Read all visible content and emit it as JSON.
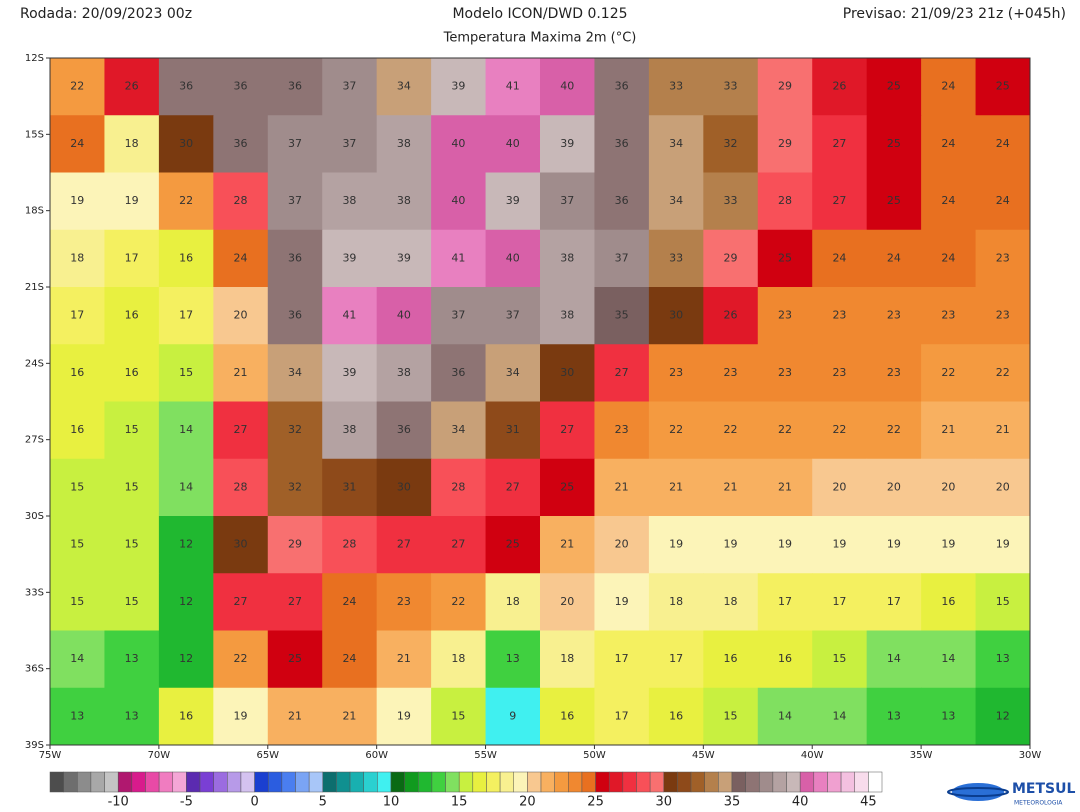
{
  "header": {
    "left": "Rodada: 20/09/2023 00z",
    "center": "Modelo ICON/DWD 0.125",
    "subtitle": "Temperatura Maxima 2m (°C)",
    "right": "Previsao: 21/09/23 21z (+045h)"
  },
  "map": {
    "lat_ticks": [
      {
        "value": -12,
        "label": "12S"
      },
      {
        "value": -15,
        "label": "15S"
      },
      {
        "value": -18,
        "label": "18S"
      },
      {
        "value": -21,
        "label": "21S"
      },
      {
        "value": -24,
        "label": "24S"
      },
      {
        "value": -27,
        "label": "27S"
      },
      {
        "value": -30,
        "label": "30S"
      },
      {
        "value": -33,
        "label": "33S"
      },
      {
        "value": -36,
        "label": "36S"
      },
      {
        "value": -39,
        "label": "39S"
      }
    ],
    "lon_ticks": [
      {
        "value": -75,
        "label": "75W"
      },
      {
        "value": -70,
        "label": "70W"
      },
      {
        "value": -65,
        "label": "65W"
      },
      {
        "value": -60,
        "label": "60W"
      },
      {
        "value": -55,
        "label": "55W"
      },
      {
        "value": -50,
        "label": "50W"
      },
      {
        "value": -45,
        "label": "45W"
      },
      {
        "value": -40,
        "label": "40W"
      },
      {
        "value": -35,
        "label": "35W"
      },
      {
        "value": -30,
        "label": "30W"
      }
    ],
    "values": [
      [
        22,
        26,
        36,
        36,
        36,
        37,
        34,
        39,
        41,
        40,
        36,
        33,
        33,
        29,
        26,
        25,
        24,
        25
      ],
      [
        24,
        18,
        30,
        36,
        37,
        37,
        38,
        40,
        40,
        39,
        36,
        34,
        32,
        29,
        27,
        25,
        24,
        24
      ],
      [
        19,
        19,
        22,
        28,
        37,
        38,
        38,
        40,
        39,
        37,
        36,
        34,
        33,
        28,
        27,
        25,
        24,
        24
      ],
      [
        18,
        17,
        16,
        24,
        36,
        39,
        39,
        41,
        40,
        38,
        37,
        33,
        29,
        25,
        24,
        24,
        24,
        23
      ],
      [
        17,
        16,
        17,
        20,
        36,
        41,
        40,
        37,
        37,
        38,
        35,
        30,
        26,
        23,
        23,
        23,
        23,
        23
      ],
      [
        16,
        16,
        15,
        21,
        34,
        39,
        38,
        36,
        34,
        30,
        27,
        23,
        23,
        23,
        23,
        23,
        22,
        22
      ],
      [
        16,
        15,
        14,
        27,
        32,
        38,
        36,
        34,
        31,
        27,
        23,
        22,
        22,
        22,
        22,
        22,
        21,
        21
      ],
      [
        15,
        15,
        14,
        28,
        32,
        31,
        30,
        28,
        27,
        25,
        21,
        21,
        21,
        21,
        20,
        20,
        20,
        20
      ],
      [
        15,
        15,
        12,
        30,
        29,
        28,
        27,
        27,
        25,
        21,
        20,
        19,
        19,
        19,
        19,
        19,
        19,
        19
      ],
      [
        15,
        15,
        12,
        27,
        27,
        24,
        23,
        22,
        18,
        20,
        19,
        18,
        18,
        17,
        17,
        17,
        16,
        15
      ],
      [
        14,
        13,
        12,
        22,
        25,
        24,
        21,
        18,
        13,
        18,
        17,
        17,
        16,
        16,
        15,
        14,
        14,
        13
      ],
      [
        13,
        13,
        16,
        19,
        21,
        21,
        19,
        15,
        9,
        16,
        17,
        16,
        15,
        14,
        14,
        13,
        13,
        12
      ]
    ],
    "colorbar": {
      "min": -15,
      "colors": [
        "#4d4d4d",
        "#6e6e6e",
        "#8c8c8c",
        "#a8a8a8",
        "#c4c4c4",
        "#b0186f",
        "#d81b8c",
        "#e84aa6",
        "#f07cc0",
        "#f4a6d6",
        "#5b2bb0",
        "#7a3fd4",
        "#9b6ce0",
        "#b79ae8",
        "#d4c2f0",
        "#1a3fd0",
        "#2b5de0",
        "#4a7ef0",
        "#7aa4f4",
        "#a8c6f8",
        "#0d6e6e",
        "#109090",
        "#18b0b0",
        "#2ad0d0",
        "#40f0f0",
        "#0a6a14",
        "#109a1e",
        "#20b830",
        "#40d040",
        "#80e060",
        "#c8f040",
        "#e8f040",
        "#f4f060",
        "#f8f090",
        "#fcf4b8",
        "#f8c890",
        "#f8b060",
        "#f49a40",
        "#f08830",
        "#e87020",
        "#d00010",
        "#e01828",
        "#f03040",
        "#f85058",
        "#f87070",
        "#7a3a10",
        "#8e4a1a",
        "#a06028",
        "#b4804c",
        "#c8a078",
        "#7a6060",
        "#8e7474",
        "#a08c8c",
        "#b4a2a2",
        "#c8b8b8",
        "#d860a8",
        "#e880c0",
        "#f0a0d0",
        "#f4c0e0",
        "#f8dcec",
        "#ffffff"
      ],
      "labels": [
        -10,
        -5,
        0,
        5,
        10,
        15,
        20,
        25,
        30,
        35,
        40,
        45
      ]
    },
    "logo": {
      "name": "METSUL",
      "tagline": "METEOROLOGIA"
    }
  }
}
